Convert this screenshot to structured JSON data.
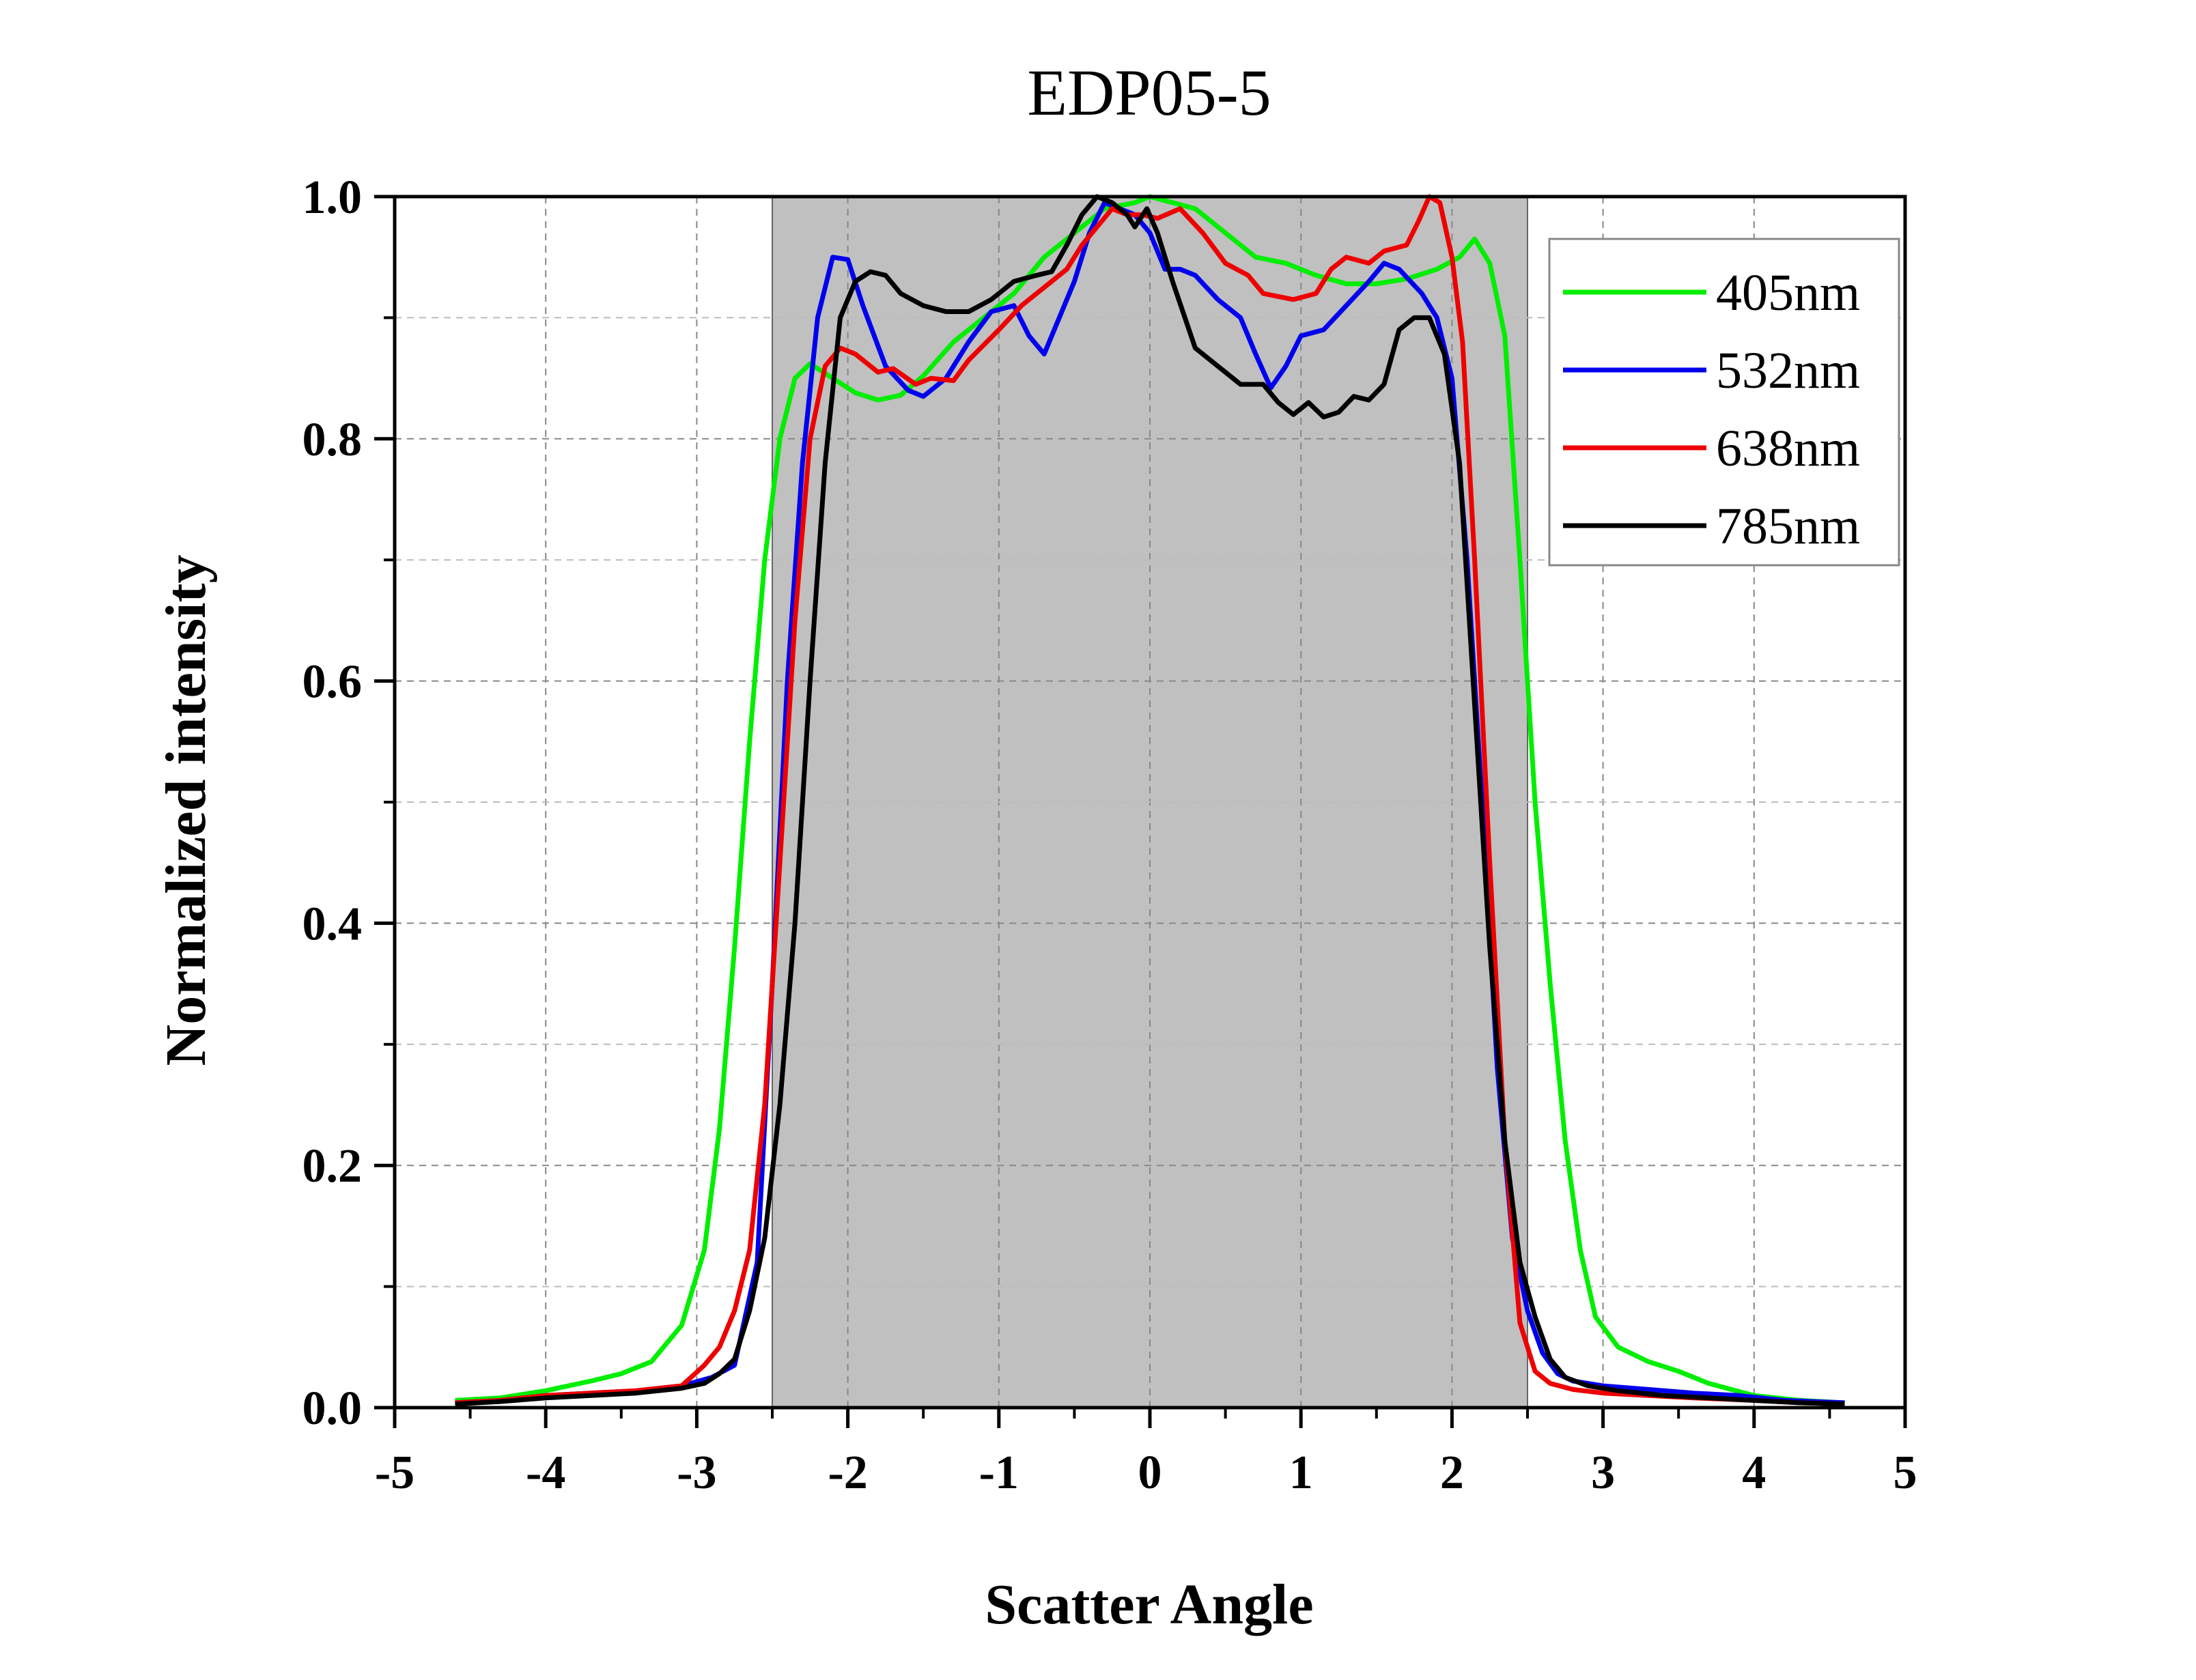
{
  "chart_data": {
    "type": "line",
    "title": "EDP05-5",
    "xlabel": "Scatter Angle",
    "ylabel": "Normalized intensity",
    "xlim": [
      -5,
      5
    ],
    "ylim": [
      0,
      1
    ],
    "xticks": [
      "-5",
      "-4",
      "-3",
      "-2",
      "-1",
      "0",
      "1",
      "2",
      "3",
      "4",
      "5"
    ],
    "yticks": [
      "0.0",
      "0.2",
      "0.4",
      "0.6",
      "0.8",
      "1.0"
    ],
    "grid": true,
    "legend_position": "top-right",
    "shaded_region": {
      "x": [
        -2.5,
        2.5
      ],
      "color": "#c0c0c0"
    },
    "series": [
      {
        "name": "405nm",
        "color": "#00ee00",
        "points": [
          [
            -4.6,
            0.006
          ],
          [
            -4.3,
            0.008
          ],
          [
            -4.0,
            0.014
          ],
          [
            -3.7,
            0.022
          ],
          [
            -3.5,
            0.028
          ],
          [
            -3.3,
            0.038
          ],
          [
            -3.1,
            0.068
          ],
          [
            -2.95,
            0.13
          ],
          [
            -2.85,
            0.23
          ],
          [
            -2.75,
            0.38
          ],
          [
            -2.65,
            0.55
          ],
          [
            -2.55,
            0.7
          ],
          [
            -2.45,
            0.8
          ],
          [
            -2.35,
            0.85
          ],
          [
            -2.25,
            0.862
          ],
          [
            -2.1,
            0.85
          ],
          [
            -1.95,
            0.838
          ],
          [
            -1.8,
            0.832
          ],
          [
            -1.65,
            0.836
          ],
          [
            -1.5,
            0.852
          ],
          [
            -1.3,
            0.88
          ],
          [
            -1.1,
            0.9
          ],
          [
            -0.9,
            0.92
          ],
          [
            -0.7,
            0.95
          ],
          [
            -0.5,
            0.97
          ],
          [
            -0.3,
            0.99
          ],
          [
            -0.1,
            0.995
          ],
          [
            0.0,
            1.0
          ],
          [
            0.15,
            0.995
          ],
          [
            0.3,
            0.99
          ],
          [
            0.5,
            0.97
          ],
          [
            0.7,
            0.95
          ],
          [
            0.9,
            0.945
          ],
          [
            1.1,
            0.935
          ],
          [
            1.3,
            0.928
          ],
          [
            1.5,
            0.928
          ],
          [
            1.7,
            0.932
          ],
          [
            1.9,
            0.94
          ],
          [
            2.05,
            0.95
          ],
          [
            2.15,
            0.965
          ],
          [
            2.25,
            0.945
          ],
          [
            2.35,
            0.885
          ],
          [
            2.45,
            0.7
          ],
          [
            2.55,
            0.5
          ],
          [
            2.65,
            0.35
          ],
          [
            2.75,
            0.22
          ],
          [
            2.85,
            0.13
          ],
          [
            2.95,
            0.075
          ],
          [
            3.1,
            0.05
          ],
          [
            3.3,
            0.038
          ],
          [
            3.5,
            0.03
          ],
          [
            3.7,
            0.02
          ],
          [
            4.0,
            0.01
          ],
          [
            4.3,
            0.006
          ],
          [
            4.6,
            0.004
          ]
        ]
      },
      {
        "name": "532nm",
        "color": "#0000ee",
        "points": [
          [
            -4.6,
            0.004
          ],
          [
            -4.3,
            0.006
          ],
          [
            -4.0,
            0.01
          ],
          [
            -3.7,
            0.012
          ],
          [
            -3.4,
            0.014
          ],
          [
            -3.1,
            0.018
          ],
          [
            -2.9,
            0.025
          ],
          [
            -2.75,
            0.035
          ],
          [
            -2.6,
            0.12
          ],
          [
            -2.5,
            0.35
          ],
          [
            -2.4,
            0.6
          ],
          [
            -2.3,
            0.78
          ],
          [
            -2.2,
            0.9
          ],
          [
            -2.1,
            0.95
          ],
          [
            -2.0,
            0.948
          ],
          [
            -1.9,
            0.91
          ],
          [
            -1.75,
            0.86
          ],
          [
            -1.6,
            0.84
          ],
          [
            -1.5,
            0.835
          ],
          [
            -1.35,
            0.85
          ],
          [
            -1.2,
            0.88
          ],
          [
            -1.05,
            0.905
          ],
          [
            -0.9,
            0.91
          ],
          [
            -0.8,
            0.885
          ],
          [
            -0.7,
            0.87
          ],
          [
            -0.6,
            0.9
          ],
          [
            -0.5,
            0.93
          ],
          [
            -0.4,
            0.97
          ],
          [
            -0.3,
            0.995
          ],
          [
            -0.2,
            0.99
          ],
          [
            -0.1,
            0.985
          ],
          [
            0.0,
            0.97
          ],
          [
            0.1,
            0.94
          ],
          [
            0.2,
            0.94
          ],
          [
            0.3,
            0.935
          ],
          [
            0.45,
            0.915
          ],
          [
            0.6,
            0.9
          ],
          [
            0.7,
            0.87
          ],
          [
            0.8,
            0.842
          ],
          [
            0.9,
            0.86
          ],
          [
            1.0,
            0.885
          ],
          [
            1.15,
            0.89
          ],
          [
            1.3,
            0.91
          ],
          [
            1.45,
            0.93
          ],
          [
            1.55,
            0.945
          ],
          [
            1.65,
            0.94
          ],
          [
            1.8,
            0.92
          ],
          [
            1.9,
            0.9
          ],
          [
            2.0,
            0.85
          ],
          [
            2.1,
            0.7
          ],
          [
            2.2,
            0.5
          ],
          [
            2.3,
            0.28
          ],
          [
            2.4,
            0.14
          ],
          [
            2.5,
            0.08
          ],
          [
            2.6,
            0.045
          ],
          [
            2.7,
            0.028
          ],
          [
            2.8,
            0.022
          ],
          [
            3.0,
            0.018
          ],
          [
            3.3,
            0.015
          ],
          [
            3.6,
            0.012
          ],
          [
            3.9,
            0.01
          ],
          [
            4.2,
            0.006
          ],
          [
            4.6,
            0.004
          ]
        ]
      },
      {
        "name": "638nm",
        "color": "#ee0000",
        "points": [
          [
            -4.6,
            0.004
          ],
          [
            -4.3,
            0.006
          ],
          [
            -4.0,
            0.01
          ],
          [
            -3.7,
            0.012
          ],
          [
            -3.4,
            0.014
          ],
          [
            -3.1,
            0.018
          ],
          [
            -2.95,
            0.035
          ],
          [
            -2.85,
            0.05
          ],
          [
            -2.75,
            0.08
          ],
          [
            -2.65,
            0.13
          ],
          [
            -2.55,
            0.25
          ],
          [
            -2.45,
            0.45
          ],
          [
            -2.35,
            0.65
          ],
          [
            -2.25,
            0.8
          ],
          [
            -2.15,
            0.86
          ],
          [
            -2.05,
            0.875
          ],
          [
            -1.95,
            0.87
          ],
          [
            -1.8,
            0.855
          ],
          [
            -1.7,
            0.858
          ],
          [
            -1.55,
            0.845
          ],
          [
            -1.45,
            0.85
          ],
          [
            -1.3,
            0.848
          ],
          [
            -1.2,
            0.865
          ],
          [
            -1.0,
            0.89
          ],
          [
            -0.85,
            0.91
          ],
          [
            -0.7,
            0.925
          ],
          [
            -0.55,
            0.94
          ],
          [
            -0.45,
            0.96
          ],
          [
            -0.35,
            0.975
          ],
          [
            -0.25,
            0.99
          ],
          [
            -0.15,
            0.985
          ],
          [
            -0.05,
            0.985
          ],
          [
            0.05,
            0.982
          ],
          [
            0.2,
            0.99
          ],
          [
            0.35,
            0.97
          ],
          [
            0.5,
            0.945
          ],
          [
            0.65,
            0.935
          ],
          [
            0.75,
            0.92
          ],
          [
            0.95,
            0.915
          ],
          [
            1.1,
            0.92
          ],
          [
            1.2,
            0.94
          ],
          [
            1.3,
            0.95
          ],
          [
            1.45,
            0.945
          ],
          [
            1.55,
            0.955
          ],
          [
            1.7,
            0.96
          ],
          [
            1.78,
            0.98
          ],
          [
            1.85,
            1.0
          ],
          [
            1.92,
            0.995
          ],
          [
            2.0,
            0.95
          ],
          [
            2.07,
            0.88
          ],
          [
            2.15,
            0.7
          ],
          [
            2.25,
            0.45
          ],
          [
            2.35,
            0.22
          ],
          [
            2.45,
            0.07
          ],
          [
            2.55,
            0.03
          ],
          [
            2.65,
            0.02
          ],
          [
            2.8,
            0.015
          ],
          [
            3.0,
            0.012
          ],
          [
            3.3,
            0.01
          ],
          [
            3.6,
            0.008
          ],
          [
            4.0,
            0.006
          ],
          [
            4.3,
            0.004
          ],
          [
            4.6,
            0.003
          ]
        ]
      },
      {
        "name": "785nm",
        "color": "#000000",
        "points": [
          [
            -4.6,
            0.003
          ],
          [
            -4.3,
            0.005
          ],
          [
            -4.0,
            0.008
          ],
          [
            -3.7,
            0.01
          ],
          [
            -3.4,
            0.012
          ],
          [
            -3.1,
            0.016
          ],
          [
            -2.95,
            0.02
          ],
          [
            -2.85,
            0.028
          ],
          [
            -2.75,
            0.04
          ],
          [
            -2.65,
            0.08
          ],
          [
            -2.55,
            0.14
          ],
          [
            -2.45,
            0.25
          ],
          [
            -2.35,
            0.4
          ],
          [
            -2.25,
            0.6
          ],
          [
            -2.15,
            0.78
          ],
          [
            -2.05,
            0.9
          ],
          [
            -1.95,
            0.93
          ],
          [
            -1.85,
            0.938
          ],
          [
            -1.75,
            0.935
          ],
          [
            -1.65,
            0.92
          ],
          [
            -1.5,
            0.91
          ],
          [
            -1.35,
            0.905
          ],
          [
            -1.2,
            0.905
          ],
          [
            -1.05,
            0.915
          ],
          [
            -0.9,
            0.93
          ],
          [
            -0.75,
            0.935
          ],
          [
            -0.65,
            0.938
          ],
          [
            -0.55,
            0.96
          ],
          [
            -0.45,
            0.985
          ],
          [
            -0.35,
            1.0
          ],
          [
            -0.25,
            0.995
          ],
          [
            -0.15,
            0.985
          ],
          [
            -0.1,
            0.975
          ],
          [
            -0.02,
            0.99
          ],
          [
            0.05,
            0.97
          ],
          [
            0.15,
            0.93
          ],
          [
            0.3,
            0.875
          ],
          [
            0.45,
            0.86
          ],
          [
            0.6,
            0.845
          ],
          [
            0.75,
            0.845
          ],
          [
            0.85,
            0.83
          ],
          [
            0.95,
            0.82
          ],
          [
            1.05,
            0.83
          ],
          [
            1.15,
            0.818
          ],
          [
            1.25,
            0.822
          ],
          [
            1.35,
            0.835
          ],
          [
            1.45,
            0.832
          ],
          [
            1.55,
            0.845
          ],
          [
            1.65,
            0.89
          ],
          [
            1.75,
            0.9
          ],
          [
            1.85,
            0.9
          ],
          [
            1.95,
            0.87
          ],
          [
            2.05,
            0.78
          ],
          [
            2.15,
            0.58
          ],
          [
            2.25,
            0.38
          ],
          [
            2.35,
            0.22
          ],
          [
            2.45,
            0.12
          ],
          [
            2.55,
            0.075
          ],
          [
            2.65,
            0.04
          ],
          [
            2.75,
            0.025
          ],
          [
            2.9,
            0.018
          ],
          [
            3.1,
            0.014
          ],
          [
            3.4,
            0.01
          ],
          [
            3.7,
            0.008
          ],
          [
            4.0,
            0.006
          ],
          [
            4.3,
            0.004
          ],
          [
            4.6,
            0.003
          ]
        ]
      }
    ]
  }
}
